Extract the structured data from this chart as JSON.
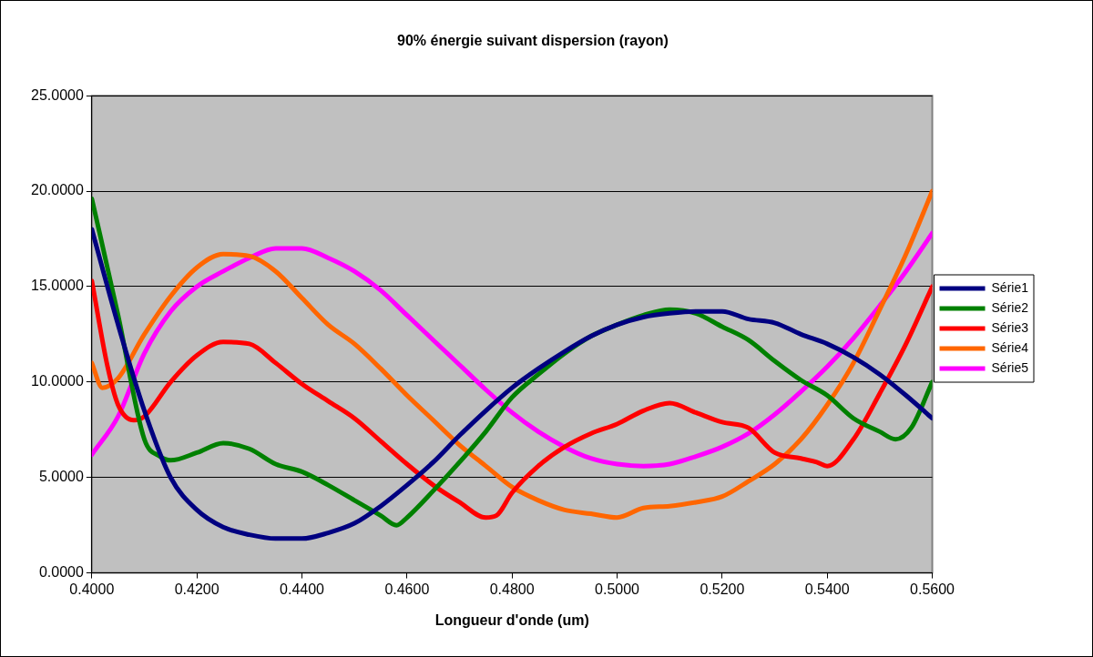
{
  "chart_data": {
    "type": "line",
    "title": "90% énergie suivant dispersion (rayon)",
    "xlabel": "Longueur d'onde (um)",
    "xlim": [
      0.4,
      0.56
    ],
    "xticks": [
      {
        "value": 0.4,
        "label": "0.4000"
      },
      {
        "value": 0.42,
        "label": "0.4200"
      },
      {
        "value": 0.44,
        "label": "0.4400"
      },
      {
        "value": 0.46,
        "label": "0.4600"
      },
      {
        "value": 0.48,
        "label": "0.4800"
      },
      {
        "value": 0.5,
        "label": "0.5000"
      },
      {
        "value": 0.52,
        "label": "0.5200"
      },
      {
        "value": 0.54,
        "label": "0.5400"
      },
      {
        "value": 0.56,
        "label": "0.5600"
      }
    ],
    "ylim": [
      0,
      25
    ],
    "yticks": [
      {
        "value": 0,
        "label": "0.0000"
      },
      {
        "value": 5,
        "label": "5.0000"
      },
      {
        "value": 10,
        "label": "10.0000"
      },
      {
        "value": 15,
        "label": "15.0000"
      },
      {
        "value": 20,
        "label": "20.0000"
      },
      {
        "value": 25,
        "label": "25.0000"
      }
    ],
    "grid": "y",
    "legend": "right",
    "marker": "none",
    "line_style": "solid",
    "series": [
      {
        "name": "Série1",
        "color": "#000080",
        "x": [
          0.4,
          0.405,
          0.41,
          0.415,
          0.42,
          0.425,
          0.43,
          0.435,
          0.44,
          0.445,
          0.45,
          0.455,
          0.46,
          0.465,
          0.47,
          0.475,
          0.48,
          0.485,
          0.49,
          0.495,
          0.5,
          0.505,
          0.51,
          0.515,
          0.52,
          0.525,
          0.53,
          0.535,
          0.54,
          0.545,
          0.55,
          0.555,
          0.56
        ],
        "values": [
          18,
          13,
          8.5,
          5,
          3.3,
          2.4,
          2,
          1.8,
          1.8,
          2.1,
          2.6,
          3.5,
          4.6,
          5.8,
          7.2,
          8.5,
          9.7,
          10.7,
          11.6,
          12.4,
          13,
          13.4,
          13.6,
          13.7,
          13.7,
          13.3,
          13.1,
          12.5,
          12,
          11.3,
          10.4,
          9.3,
          8.1
        ]
      },
      {
        "name": "Série2",
        "color": "#008000",
        "x": [
          0.4,
          0.405,
          0.41,
          0.413,
          0.415,
          0.42,
          0.425,
          0.43,
          0.435,
          0.44,
          0.445,
          0.45,
          0.455,
          0.458,
          0.46,
          0.465,
          0.47,
          0.475,
          0.48,
          0.485,
          0.49,
          0.495,
          0.5,
          0.505,
          0.51,
          0.515,
          0.52,
          0.525,
          0.53,
          0.535,
          0.54,
          0.545,
          0.55,
          0.553,
          0.556,
          0.56
        ],
        "values": [
          19.6,
          13.5,
          7,
          6.1,
          5.9,
          6.3,
          6.8,
          6.5,
          5.7,
          5.3,
          4.6,
          3.8,
          3,
          2.5,
          2.9,
          4.3,
          5.8,
          7.4,
          9.2,
          10.4,
          11.5,
          12.4,
          13,
          13.5,
          13.8,
          13.6,
          12.9,
          12.2,
          11.1,
          10.1,
          9.3,
          8.1,
          7.4,
          7,
          7.6,
          10
        ]
      },
      {
        "name": "Série3",
        "color": "#ff0000",
        "x": [
          0.4,
          0.403,
          0.405,
          0.408,
          0.41,
          0.415,
          0.42,
          0.425,
          0.43,
          0.435,
          0.44,
          0.445,
          0.45,
          0.455,
          0.46,
          0.465,
          0.47,
          0.475,
          0.477,
          0.48,
          0.485,
          0.49,
          0.495,
          0.5,
          0.505,
          0.51,
          0.515,
          0.52,
          0.525,
          0.53,
          0.535,
          0.538,
          0.54,
          0.545,
          0.55,
          0.555,
          0.56
        ],
        "values": [
          15.3,
          10.8,
          8.8,
          8,
          8.2,
          10,
          11.4,
          12.1,
          12,
          11,
          9.9,
          9,
          8.1,
          6.9,
          5.7,
          4.6,
          3.7,
          2.9,
          3,
          4.2,
          5.6,
          6.6,
          7.3,
          7.8,
          8.5,
          8.9,
          8.4,
          7.9,
          7.6,
          6.3,
          6,
          5.8,
          5.6,
          7,
          9.4,
          12,
          15
        ]
      },
      {
        "name": "Série4",
        "color": "#ff6600",
        "x": [
          0.4,
          0.402,
          0.405,
          0.41,
          0.415,
          0.42,
          0.425,
          0.43,
          0.435,
          0.44,
          0.445,
          0.45,
          0.455,
          0.46,
          0.465,
          0.47,
          0.475,
          0.48,
          0.485,
          0.49,
          0.495,
          0.5,
          0.505,
          0.51,
          0.515,
          0.52,
          0.525,
          0.53,
          0.535,
          0.54,
          0.545,
          0.55,
          0.555,
          0.56
        ],
        "values": [
          11,
          9.7,
          10.2,
          12.5,
          14.5,
          16,
          16.7,
          16.6,
          15.8,
          14.4,
          13,
          12,
          10.7,
          9.3,
          8,
          6.7,
          5.6,
          4.5,
          3.8,
          3.3,
          3.1,
          2.9,
          3.4,
          3.5,
          3.7,
          4,
          4.8,
          5.7,
          7,
          8.8,
          11,
          13.8,
          16.7,
          20
        ]
      },
      {
        "name": "Série5",
        "color": "#ff00ff",
        "x": [
          0.4,
          0.405,
          0.41,
          0.415,
          0.42,
          0.425,
          0.43,
          0.435,
          0.44,
          0.445,
          0.45,
          0.455,
          0.46,
          0.465,
          0.47,
          0.475,
          0.48,
          0.485,
          0.49,
          0.495,
          0.5,
          0.505,
          0.51,
          0.515,
          0.52,
          0.525,
          0.53,
          0.535,
          0.54,
          0.545,
          0.55,
          0.555,
          0.56
        ],
        "values": [
          6.2,
          8.2,
          11.5,
          13.7,
          15,
          15.8,
          16.5,
          17,
          17,
          16.5,
          15.8,
          14.8,
          13.5,
          12.2,
          10.9,
          9.6,
          8.4,
          7.4,
          6.6,
          6,
          5.7,
          5.6,
          5.7,
          6.1,
          6.6,
          7.3,
          8.3,
          9.5,
          10.8,
          12.3,
          14,
          15.8,
          17.8
        ]
      }
    ]
  }
}
